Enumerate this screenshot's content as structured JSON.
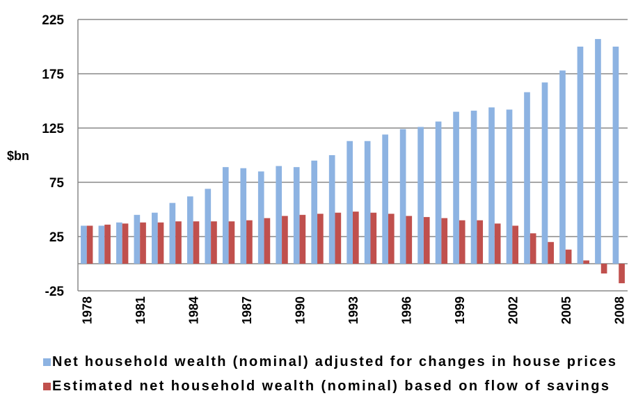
{
  "chart_data": {
    "type": "bar",
    "y_label": "$bn",
    "categories": [
      "1978",
      null,
      null,
      "1981",
      null,
      null,
      "1984",
      null,
      null,
      "1987",
      null,
      null,
      "1990",
      null,
      null,
      "1993",
      null,
      null,
      "1996",
      null,
      null,
      "1999",
      null,
      null,
      "2002",
      null,
      null,
      "2005",
      null,
      null,
      "2008"
    ],
    "series": [
      {
        "name": "Net household wealth (nominal) adjusted for changes in house prices",
        "color": "#8db3e2",
        "values": [
          35,
          35,
          38,
          45,
          47,
          56,
          62,
          69,
          89,
          88,
          85,
          90,
          89,
          95,
          100,
          113,
          113,
          119,
          124,
          126,
          131,
          140,
          141,
          144,
          142,
          158,
          167,
          178,
          200,
          207,
          200
        ]
      },
      {
        "name": "Estimated net household wealth (nominal) based on flow of savings",
        "color": "#c0504d",
        "values": [
          35,
          36,
          37,
          38,
          38,
          39,
          39,
          39,
          39,
          40,
          42,
          44,
          45,
          46,
          47,
          48,
          47,
          46,
          44,
          43,
          42,
          40,
          40,
          37,
          35,
          28,
          20,
          13,
          3,
          -9,
          -18
        ]
      }
    ],
    "ylim": [
      -25,
      225
    ],
    "yticks": [
      -25,
      25,
      75,
      125,
      175,
      225
    ],
    "grid": true
  }
}
